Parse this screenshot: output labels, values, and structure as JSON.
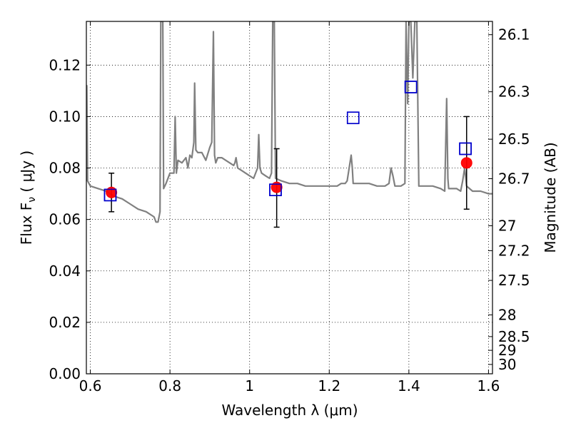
{
  "chart_data": {
    "type": "scatter",
    "xlabel": "Wavelength  λ (μm)",
    "ylabel": "Flux  F",
    "ylabel_sub": "ν",
    "ylabel_unit": " ( μJy )",
    "ylabel_right": "Magnitude (AB)",
    "xlim": [
      0.59,
      1.61
    ],
    "ylim": [
      0.0,
      0.137
    ],
    "grid": true,
    "x_ticks": [
      {
        "value": 0.6,
        "label": "0.6"
      },
      {
        "value": 0.8,
        "label": "0.8"
      },
      {
        "value": 1.0,
        "label": "1"
      },
      {
        "value": 1.2,
        "label": "1.2"
      },
      {
        "value": 1.4,
        "label": "1.4"
      },
      {
        "value": 1.6,
        "label": "1.6"
      }
    ],
    "y_ticks": [
      {
        "value": 0.0,
        "label": "0.00"
      },
      {
        "value": 0.02,
        "label": "0.02"
      },
      {
        "value": 0.04,
        "label": "0.04"
      },
      {
        "value": 0.06,
        "label": "0.06"
      },
      {
        "value": 0.08,
        "label": "0.08"
      },
      {
        "value": 0.1,
        "label": "0.10"
      },
      {
        "value": 0.12,
        "label": "0.12"
      }
    ],
    "right_ticks": [
      {
        "mag": 26.1,
        "label": "26.1"
      },
      {
        "mag": 26.3,
        "label": "26.3"
      },
      {
        "mag": 26.5,
        "label": "26.5"
      },
      {
        "mag": 26.7,
        "label": "26.7"
      },
      {
        "mag": 27.0,
        "label": "27"
      },
      {
        "mag": 27.2,
        "label": "27.2"
      },
      {
        "mag": 27.5,
        "label": "27.5"
      },
      {
        "mag": 28.0,
        "label": "28"
      },
      {
        "mag": 28.5,
        "label": "28.5"
      },
      {
        "mag": 29.0,
        "label": "29"
      },
      {
        "mag": 30.0,
        "label": "30"
      }
    ],
    "model_spectrum": {
      "color": "#808080",
      "points": [
        [
          0.59,
          0.075
        ],
        [
          0.591,
          0.112
        ],
        [
          0.593,
          0.075
        ],
        [
          0.6,
          0.073
        ],
        [
          0.62,
          0.072
        ],
        [
          0.64,
          0.071
        ],
        [
          0.66,
          0.069
        ],
        [
          0.68,
          0.068
        ],
        [
          0.7,
          0.066
        ],
        [
          0.72,
          0.064
        ],
        [
          0.74,
          0.063
        ],
        [
          0.76,
          0.061
        ],
        [
          0.765,
          0.059
        ],
        [
          0.77,
          0.059
        ],
        [
          0.775,
          0.063
        ],
        [
          0.777,
          0.137
        ],
        [
          0.782,
          0.137
        ],
        [
          0.784,
          0.072
        ],
        [
          0.79,
          0.074
        ],
        [
          0.8,
          0.078
        ],
        [
          0.81,
          0.078
        ],
        [
          0.813,
          0.1
        ],
        [
          0.816,
          0.078
        ],
        [
          0.82,
          0.083
        ],
        [
          0.83,
          0.082
        ],
        [
          0.84,
          0.084
        ],
        [
          0.845,
          0.08
        ],
        [
          0.85,
          0.085
        ],
        [
          0.855,
          0.084
        ],
        [
          0.86,
          0.09
        ],
        [
          0.862,
          0.113
        ],
        [
          0.865,
          0.087
        ],
        [
          0.87,
          0.086
        ],
        [
          0.88,
          0.086
        ],
        [
          0.89,
          0.083
        ],
        [
          0.9,
          0.088
        ],
        [
          0.905,
          0.09
        ],
        [
          0.909,
          0.133
        ],
        [
          0.912,
          0.085
        ],
        [
          0.915,
          0.082
        ],
        [
          0.92,
          0.084
        ],
        [
          0.93,
          0.084
        ],
        [
          0.94,
          0.083
        ],
        [
          0.95,
          0.082
        ],
        [
          0.96,
          0.081
        ],
        [
          0.963,
          0.082
        ],
        [
          0.966,
          0.084
        ],
        [
          0.97,
          0.08
        ],
        [
          0.98,
          0.079
        ],
        [
          1.0,
          0.077
        ],
        [
          1.01,
          0.076
        ],
        [
          1.02,
          0.08
        ],
        [
          1.023,
          0.093
        ],
        [
          1.026,
          0.08
        ],
        [
          1.03,
          0.078
        ],
        [
          1.04,
          0.077
        ],
        [
          1.05,
          0.076
        ],
        [
          1.055,
          0.078
        ],
        [
          1.058,
          0.137
        ],
        [
          1.062,
          0.137
        ],
        [
          1.065,
          0.076
        ],
        [
          1.08,
          0.075
        ],
        [
          1.1,
          0.074
        ],
        [
          1.12,
          0.074
        ],
        [
          1.14,
          0.073
        ],
        [
          1.16,
          0.073
        ],
        [
          1.18,
          0.073
        ],
        [
          1.2,
          0.073
        ],
        [
          1.22,
          0.073
        ],
        [
          1.23,
          0.074
        ],
        [
          1.24,
          0.074
        ],
        [
          1.245,
          0.075
        ],
        [
          1.25,
          0.08
        ],
        [
          1.255,
          0.085
        ],
        [
          1.258,
          0.08
        ],
        [
          1.26,
          0.074
        ],
        [
          1.28,
          0.074
        ],
        [
          1.3,
          0.074
        ],
        [
          1.32,
          0.073
        ],
        [
          1.33,
          0.073
        ],
        [
          1.34,
          0.073
        ],
        [
          1.35,
          0.074
        ],
        [
          1.355,
          0.08
        ],
        [
          1.36,
          0.077
        ],
        [
          1.365,
          0.073
        ],
        [
          1.38,
          0.073
        ],
        [
          1.39,
          0.074
        ],
        [
          1.393,
          0.137
        ],
        [
          1.397,
          0.105
        ],
        [
          1.4,
          0.137
        ],
        [
          1.405,
          0.137
        ],
        [
          1.41,
          0.115
        ],
        [
          1.415,
          0.137
        ],
        [
          1.42,
          0.137
        ],
        [
          1.425,
          0.073
        ],
        [
          1.44,
          0.073
        ],
        [
          1.46,
          0.073
        ],
        [
          1.48,
          0.072
        ],
        [
          1.49,
          0.071
        ],
        [
          1.495,
          0.107
        ],
        [
          1.498,
          0.076
        ],
        [
          1.5,
          0.072
        ],
        [
          1.52,
          0.072
        ],
        [
          1.53,
          0.071
        ],
        [
          1.535,
          0.075
        ],
        [
          1.54,
          0.08
        ],
        [
          1.545,
          0.073
        ],
        [
          1.56,
          0.071
        ],
        [
          1.58,
          0.071
        ],
        [
          1.6,
          0.07
        ],
        [
          1.61,
          0.07
        ]
      ]
    },
    "observed": {
      "color": "#ff0000",
      "errorbar_color": "#000000",
      "points": [
        {
          "x": 0.653,
          "y": 0.0705,
          "yerr_low": 0.0075,
          "yerr_high": 0.0075
        },
        {
          "x": 1.068,
          "y": 0.0725,
          "yerr_low": 0.0155,
          "yerr_high": 0.015
        },
        {
          "x": 1.545,
          "y": 0.082,
          "yerr_low": 0.018,
          "yerr_high": 0.018
        }
      ]
    },
    "model_photometry": {
      "color": "#0000cc",
      "fill": "#ffffff",
      "points": [
        {
          "x": 0.65,
          "y": 0.0695
        },
        {
          "x": 1.065,
          "y": 0.0715
        },
        {
          "x": 1.26,
          "y": 0.0995
        },
        {
          "x": 1.405,
          "y": 0.1115
        },
        {
          "x": 1.542,
          "y": 0.0875
        }
      ]
    }
  }
}
